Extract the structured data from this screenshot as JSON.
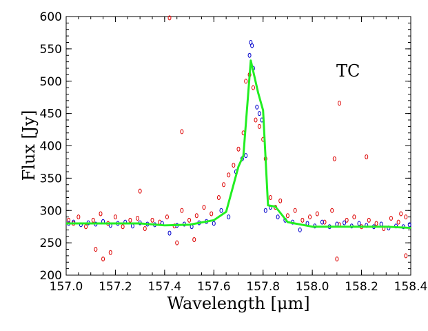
{
  "chart_data": {
    "type": "scatter",
    "title": "",
    "xlabel": "Wavelength [μm]",
    "ylabel": "Flux [Jy]",
    "annotation": "TC",
    "xlim": [
      157.0,
      158.4
    ],
    "ylim": [
      200,
      600
    ],
    "xticks": [
      "157.0",
      "157.2",
      "157.4",
      "157.6",
      "157.8",
      "158.0",
      "158.2",
      "158.4"
    ],
    "yticks": [
      "200",
      "250",
      "300",
      "350",
      "400",
      "450",
      "500",
      "550",
      "600"
    ],
    "grid": false,
    "colors": {
      "red_points": "#dd0000",
      "blue_points": "#0000cc",
      "fit_line": "#22ee22"
    },
    "series": [
      {
        "style": "points",
        "color": "#dd0000",
        "x": [
          157.01,
          157.03,
          157.05,
          157.08,
          157.11,
          157.14,
          157.17,
          157.2,
          157.23,
          157.26,
          157.29,
          157.32,
          157.35,
          157.38,
          157.41,
          157.44,
          157.47,
          157.5,
          157.53,
          157.56,
          157.59,
          157.62,
          157.64,
          157.66,
          157.68,
          157.7,
          157.72,
          157.73,
          157.745,
          157.76,
          157.77,
          157.785,
          157.8,
          157.81,
          157.83,
          157.85,
          157.87,
          157.9,
          157.93,
          157.96,
          157.99,
          158.02,
          158.05,
          158.08,
          158.11,
          158.14,
          158.17,
          158.2,
          158.23,
          158.26,
          158.29,
          158.32,
          158.35,
          158.38,
          157.42,
          157.47,
          157.12,
          157.3,
          158.11,
          158.09,
          158.22,
          158.36,
          158.38,
          158.1,
          157.15,
          157.18,
          157.45,
          157.52
        ],
        "y": [
          285,
          280,
          290,
          275,
          285,
          295,
          280,
          290,
          275,
          285,
          288,
          272,
          285,
          282,
          290,
          276,
          300,
          285,
          292,
          305,
          295,
          320,
          340,
          355,
          370,
          395,
          420,
          500,
          510,
          490,
          440,
          430,
          410,
          380,
          320,
          305,
          315,
          292,
          300,
          285,
          290,
          295,
          282,
          300,
          278,
          285,
          290,
          275,
          285,
          280,
          272,
          288,
          282,
          290,
          598,
          422,
          240,
          330,
          466,
          380,
          383,
          295,
          230,
          225,
          225,
          235,
          250,
          255
        ]
      },
      {
        "style": "points",
        "color": "#0000cc",
        "x": [
          157.01,
          157.03,
          157.06,
          157.09,
          157.12,
          157.15,
          157.18,
          157.21,
          157.24,
          157.27,
          157.3,
          157.33,
          157.36,
          157.39,
          157.42,
          157.45,
          157.48,
          157.51,
          157.54,
          157.57,
          157.6,
          157.63,
          157.66,
          157.69,
          157.715,
          157.73,
          157.745,
          157.75,
          157.755,
          157.76,
          157.775,
          157.785,
          157.795,
          157.81,
          157.83,
          157.86,
          157.89,
          157.92,
          157.95,
          157.98,
          158.01,
          158.04,
          158.07,
          158.1,
          158.13,
          158.16,
          158.19,
          158.22,
          158.25,
          158.28,
          158.31,
          158.34,
          158.37,
          158.395
        ],
        "y": [
          280,
          282,
          278,
          281,
          279,
          283,
          277,
          280,
          282,
          276,
          281,
          279,
          278,
          280,
          265,
          277,
          279,
          275,
          281,
          283,
          280,
          300,
          290,
          360,
          380,
          385,
          540,
          560,
          555,
          520,
          460,
          450,
          440,
          300,
          305,
          290,
          285,
          282,
          270,
          280,
          276,
          282,
          275,
          279,
          281,
          276,
          280,
          277,
          275,
          279,
          273,
          276,
          275,
          278
        ]
      },
      {
        "style": "line",
        "color": "#22ee22",
        "x": [
          157.0,
          157.1,
          157.2,
          157.3,
          157.4,
          157.5,
          157.6,
          157.65,
          157.7,
          157.72,
          157.75,
          157.78,
          157.8,
          157.82,
          157.85,
          157.9,
          158.0,
          158.1,
          158.2,
          158.3,
          158.4
        ],
        "y": [
          280,
          280,
          280,
          280,
          277,
          278,
          285,
          298,
          368,
          385,
          532,
          482,
          455,
          308,
          306,
          282,
          275,
          275,
          275,
          275,
          273
        ]
      }
    ]
  }
}
